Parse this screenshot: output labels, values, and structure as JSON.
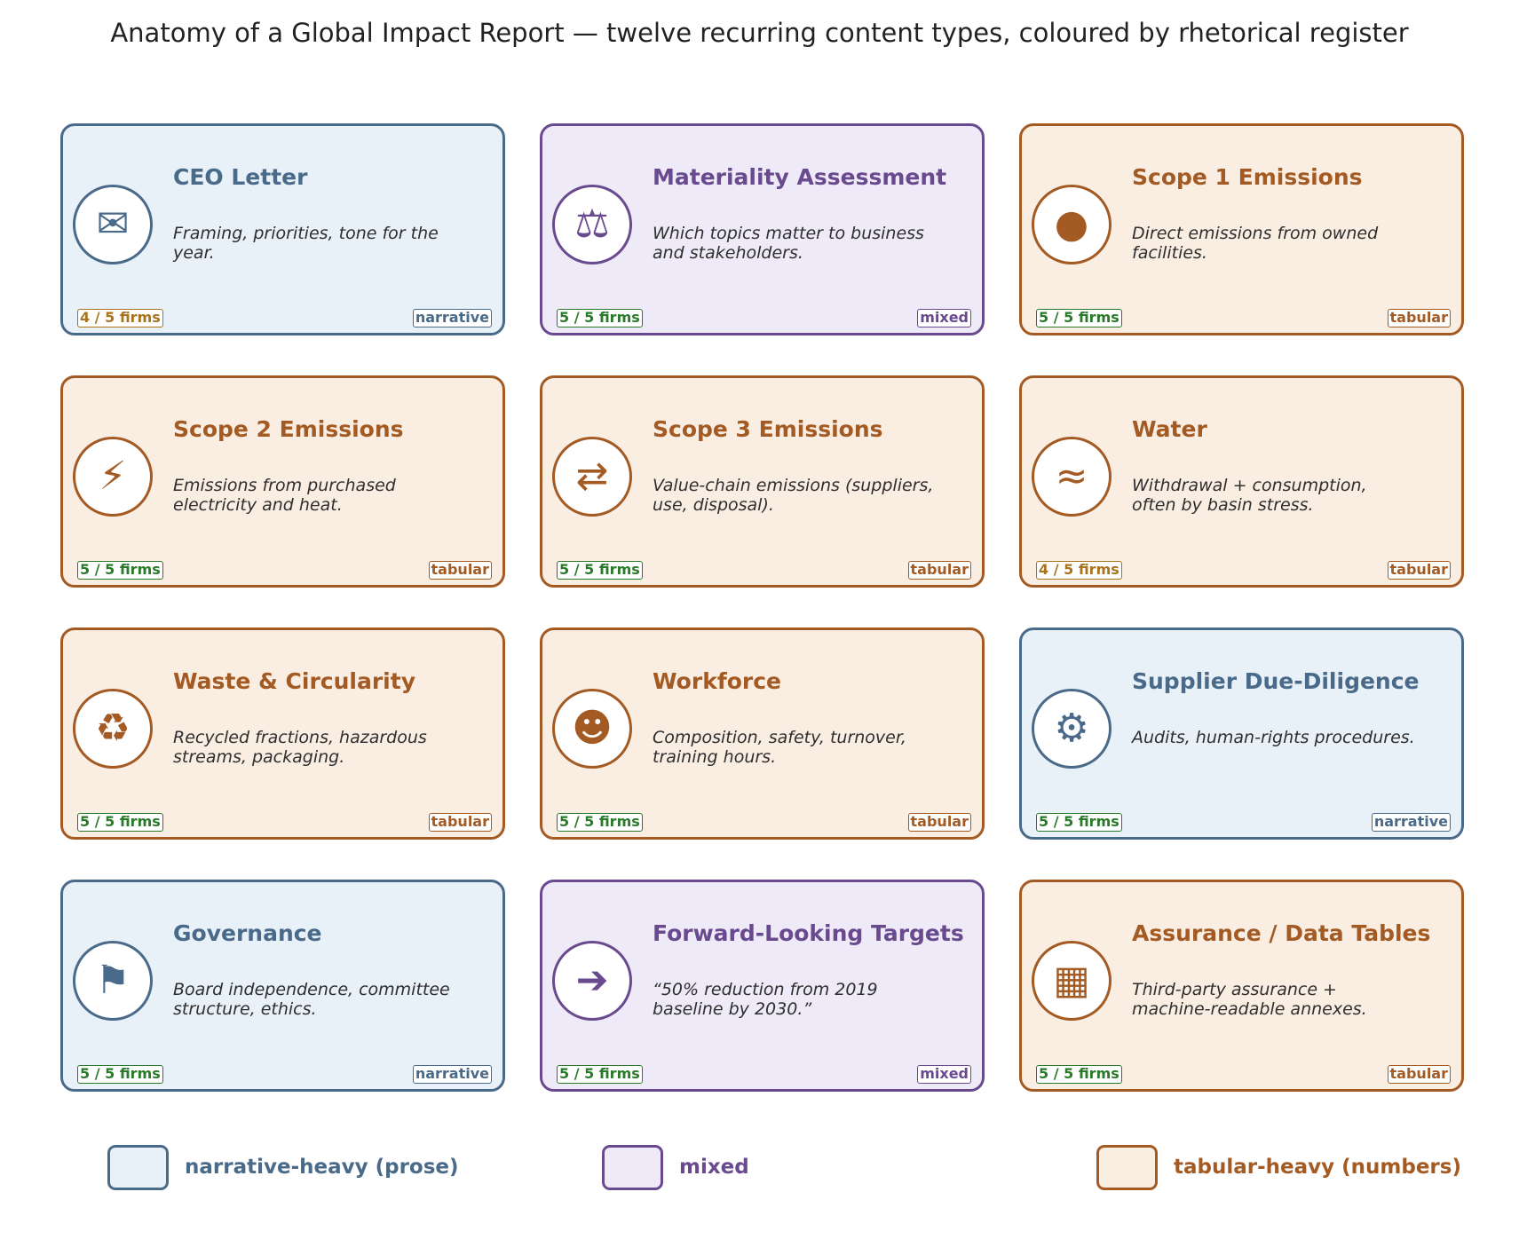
{
  "title": "Anatomy of a Global Impact Report — twelve recurring content types, coloured by rhetorical register",
  "colors": {
    "narrative": "#4a6a8a",
    "mixed": "#6a4a8f",
    "tabular": "#a35a23",
    "firms_full": "#2a7a2a",
    "firms_partial": "#a8741d"
  },
  "cards": [
    {
      "title": "CEO Letter",
      "description": "Framing, priorities, tone for the year.",
      "icon": "envelope-icon",
      "glyph": "✉",
      "firms": "4 / 5 firms",
      "register": "narrative"
    },
    {
      "title": "Materiality Assessment",
      "description": "Which topics matter to business and stakeholders.",
      "icon": "scales-icon",
      "glyph": "⚖",
      "firms": "5 / 5 firms",
      "register": "mixed"
    },
    {
      "title": "Scope 1 Emissions",
      "description": "Direct emissions from owned facilities.",
      "icon": "filled-circle-icon",
      "glyph": "●",
      "firms": "5 / 5 firms",
      "register": "tabular"
    },
    {
      "title": "Scope 2 Emissions",
      "description": "Emissions from purchased electricity and heat.",
      "icon": "lightning-icon",
      "glyph": "⚡",
      "firms": "5 / 5 firms",
      "register": "tabular"
    },
    {
      "title": "Scope 3 Emissions",
      "description": "Value-chain emissions (suppliers, use, disposal).",
      "icon": "exchange-arrows-icon",
      "glyph": "⇄",
      "firms": "5 / 5 firms",
      "register": "tabular"
    },
    {
      "title": "Water",
      "description": "Withdrawal + consumption, often by basin stress.",
      "icon": "water-waves-icon",
      "glyph": "≈",
      "firms": "4 / 5 firms",
      "register": "tabular"
    },
    {
      "title": "Waste & Circularity",
      "description": "Recycled fractions, hazardous streams, packaging.",
      "icon": "recycle-icon",
      "glyph": "♻",
      "firms": "5 / 5 firms",
      "register": "tabular"
    },
    {
      "title": "Workforce",
      "description": "Composition, safety, turnover, training hours.",
      "icon": "smiley-face-icon",
      "glyph": "☻",
      "firms": "5 / 5 firms",
      "register": "tabular"
    },
    {
      "title": "Supplier Due-Diligence",
      "description": "Audits, human-rights procedures.",
      "icon": "gear-icon",
      "glyph": "⚙",
      "firms": "5 / 5 firms",
      "register": "narrative"
    },
    {
      "title": "Governance",
      "description": "Board independence, committee structure, ethics.",
      "icon": "flag-icon",
      "glyph": "⚑",
      "firms": "5 / 5 firms",
      "register": "narrative"
    },
    {
      "title": "Forward-Looking Targets",
      "description": "“50% reduction from 2019 baseline by 2030.”",
      "icon": "right-arrow-icon",
      "glyph": "➔",
      "firms": "5 / 5 firms",
      "register": "mixed"
    },
    {
      "title": "Assurance / Data Tables",
      "description": "Third-party assurance + machine-readable annexes.",
      "icon": "table-grid-icon",
      "glyph": "▦",
      "firms": "5 / 5 firms",
      "register": "tabular"
    }
  ],
  "legend": [
    {
      "label": "narrative-heavy (prose)",
      "register": "narrative"
    },
    {
      "label": "mixed",
      "register": "mixed"
    },
    {
      "label": "tabular-heavy (numbers)",
      "register": "tabular"
    }
  ]
}
